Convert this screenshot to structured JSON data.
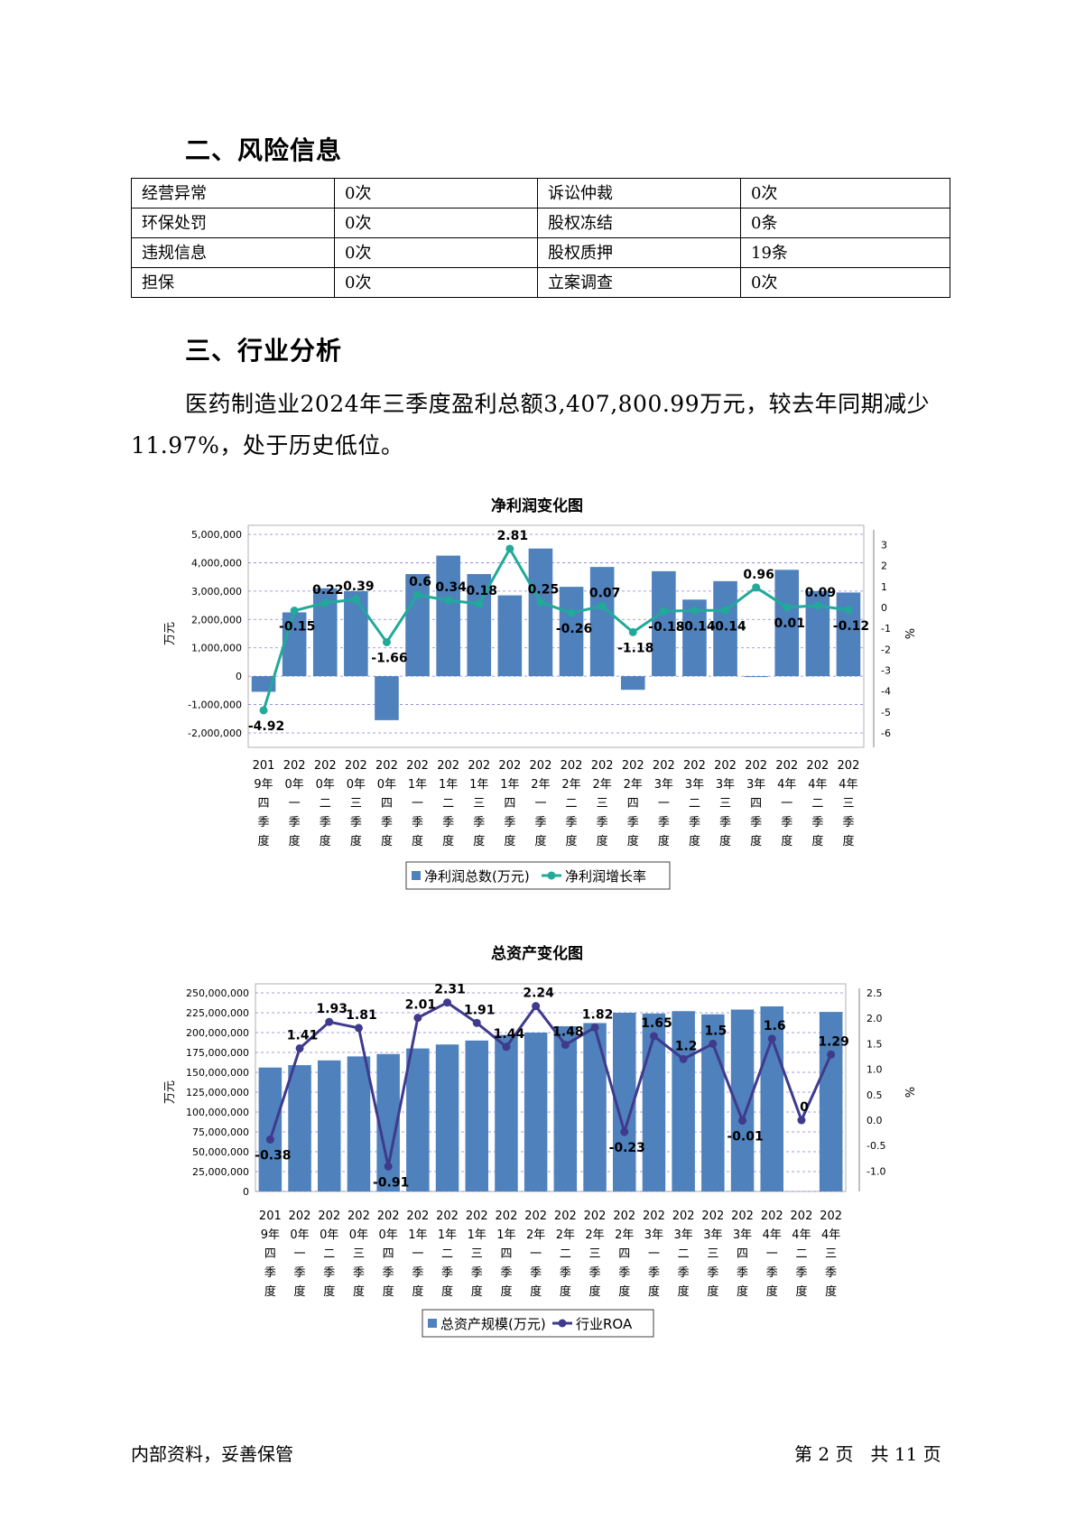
{
  "section2": {
    "title": "二、风险信息",
    "rows": [
      [
        "经营异常",
        "0次",
        "诉讼仲裁",
        "0次"
      ],
      [
        "环保处罚",
        "0次",
        "股权冻结",
        "0条"
      ],
      [
        "违规信息",
        "0次",
        "股权质押",
        "19条"
      ],
      [
        "担保",
        "0次",
        "立案调查",
        "0次"
      ]
    ]
  },
  "section3": {
    "title": "三、行业分析",
    "paragraph": "医药制造业2024年三季度盈利总额3,407,800.99万元，较去年同期减少11.97%，处于历史低位。"
  },
  "footer": {
    "left": "内部资料，妥善保管",
    "right": "第 2 页   共 11 页"
  },
  "chart_data": [
    {
      "type": "bar",
      "title": "净利润变化图",
      "ylabel": "万元",
      "y2label": "%",
      "ylim": [
        -2000000,
        5000000
      ],
      "yticks": [
        5000000,
        4000000,
        3000000,
        2000000,
        1000000,
        0,
        -1000000,
        -2000000
      ],
      "ytick_labels": [
        "5,000,000",
        "4,000,000",
        "3,000,000",
        "2,000,000",
        "1,000,000",
        "0",
        "-1,000,000",
        "-2,000,000"
      ],
      "y2lim": [
        -6,
        3.5
      ],
      "y2ticks": [
        3,
        2,
        1,
        0,
        -1,
        -2,
        -3,
        -4,
        -5,
        -6
      ],
      "categories": [
        "2019年四季度",
        "2020年一季度",
        "2020年二季度",
        "2020年三季度",
        "2020年四季度",
        "2021年一季度",
        "2021年二季度",
        "2021年三季度",
        "2021年四季度",
        "2022年一季度",
        "2022年二季度",
        "2022年三季度",
        "2022年四季度",
        "2023年一季度",
        "2023年二季度",
        "2023年三季度",
        "2023年四季度",
        "2024年一季度",
        "2024年二季度",
        "2024年三季度"
      ],
      "series": [
        {
          "name": "净利润总数(万元)",
          "type": "bar",
          "color": "#4f81bd",
          "values": [
            -550000,
            2250000,
            3100000,
            3000000,
            -1550000,
            3600000,
            4250000,
            3600000,
            2850000,
            4500000,
            3150000,
            3850000,
            -480000,
            3700000,
            2700000,
            3350000,
            -30000,
            3750000,
            3000000,
            2950000
          ]
        },
        {
          "name": "净利润增长率",
          "type": "line",
          "axis": "right",
          "color": "#21a99a",
          "values": [
            -4.92,
            -0.15,
            0.22,
            0.39,
            -1.66,
            0.6,
            0.34,
            0.18,
            2.81,
            0.25,
            -0.26,
            0.07,
            -1.18,
            -0.18,
            -0.14,
            -0.14,
            0.96,
            0.01,
            0.09,
            -0.12
          ],
          "labels": [
            "-4.92",
            "-0.15",
            "0.22",
            "0.39",
            "-1.66",
            "0.6",
            "0.34",
            "0.18",
            "2.81",
            "0.25",
            "-0.26",
            "0.07",
            "-1.18",
            "-0.18",
            "-0.14",
            "-0.14",
            "0.96",
            "0.01",
            "0.09",
            "-0.12"
          ]
        }
      ],
      "grid": true,
      "legend": "bottom"
    },
    {
      "type": "bar",
      "title": "总资产变化图",
      "ylabel": "万元",
      "y2label": "%",
      "ylim": [
        0,
        250000000
      ],
      "yticks": [
        250000000,
        225000000,
        200000000,
        175000000,
        150000000,
        125000000,
        100000000,
        75000000,
        50000000,
        25000000,
        0
      ],
      "ytick_labels": [
        "250,000,000",
        "225,000,000",
        "200,000,000",
        "175,000,000",
        "150,000,000",
        "125,000,000",
        "100,000,000",
        "75,000,000",
        "50,000,000",
        "25,000,000",
        "0"
      ],
      "y2lim": [
        -1.4,
        2.5
      ],
      "y2ticks": [
        2.5,
        2.0,
        1.5,
        1.0,
        0.5,
        0.0,
        -0.5,
        -1.0
      ],
      "y2tick_labels": [
        "2.5",
        "2.0",
        "1.5",
        "1.0",
        "0.5",
        "0.0",
        "-0.5",
        "-1.0"
      ],
      "categories": [
        "2019年四季度",
        "2020年一季度",
        "2020年二季度",
        "2020年三季度",
        "2020年四季度",
        "2021年一季度",
        "2021年二季度",
        "2021年三季度",
        "2021年四季度",
        "2022年一季度",
        "2022年二季度",
        "2022年三季度",
        "2022年四季度",
        "2023年一季度",
        "2023年二季度",
        "2023年三季度",
        "2023年四季度",
        "2024年一季度",
        "2024年二季度",
        "2024年三季度"
      ],
      "series": [
        {
          "name": "总资产规模(万元)",
          "type": "bar",
          "color": "#4f81bd",
          "values": [
            156000000,
            159000000,
            165000000,
            170000000,
            173000000,
            180000000,
            185000000,
            190000000,
            197000000,
            200000000,
            208000000,
            212000000,
            225000000,
            224000000,
            227000000,
            223000000,
            229000000,
            233000000,
            0,
            226000000
          ]
        },
        {
          "name": "行业ROA",
          "type": "line",
          "axis": "right",
          "color": "#3f3a8c",
          "values": [
            -0.38,
            1.41,
            1.93,
            1.81,
            -0.91,
            2.01,
            2.31,
            1.91,
            1.44,
            2.24,
            1.48,
            1.82,
            -0.23,
            1.65,
            1.2,
            1.5,
            -0.01,
            1.6,
            0,
            1.29
          ],
          "labels": [
            "-0.38",
            "1.41",
            "1.93",
            "1.81",
            "-0.91",
            "2.01",
            "2.31",
            "1.91",
            "1.44",
            "2.24",
            "1.48",
            "1.82",
            "-0.23",
            "1.65",
            "1.2",
            "1.5",
            "-0.01",
            "1.6",
            "0",
            "1.29"
          ]
        }
      ],
      "grid": true,
      "legend": "bottom"
    }
  ]
}
